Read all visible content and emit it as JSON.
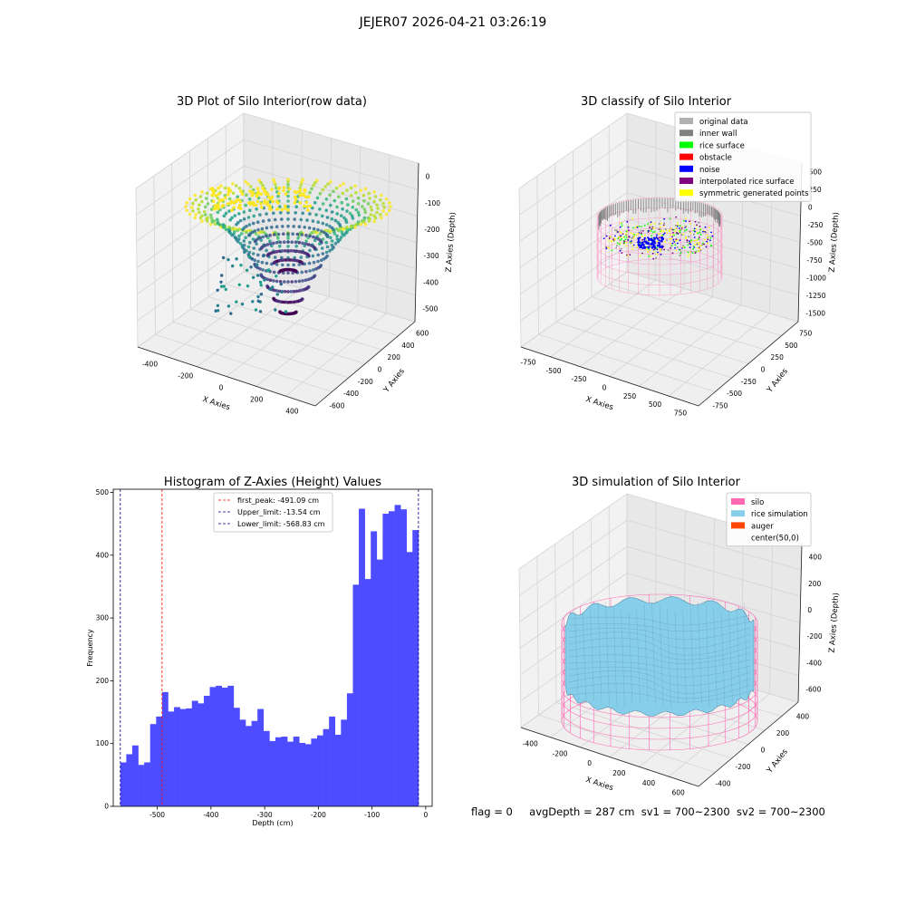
{
  "suptitle": "JEJER07 2026-04-21 03:26:19",
  "status_line": {
    "flag": "flag = 0",
    "avg_depth": "avgDepth = 287 cm",
    "sv1": "sv1 = 700~2300",
    "sv2": "sv2 = 700~2300"
  },
  "colors": {
    "histogram_bar": "#4d4dff",
    "first_peak_line": "#ff0000",
    "limit_line": "#00008b",
    "original_data": "#b0b0b0",
    "inner_wall": "#808080",
    "rice_surface": "#00ff00",
    "obstacle": "#ff0000",
    "noise": "#0000ff",
    "interpolated_rice_surface": "#800080",
    "symmetric_generated_points": "#ffff00",
    "silo": "#ff69b4",
    "rice_simulation": "#87ceeb",
    "auger": "#ff4500"
  },
  "chart_data": [
    {
      "type": "scatter",
      "projection": "3d",
      "title": "3D Plot of Silo Interior(row data)",
      "xlabel": "X Axies",
      "ylabel": "Y Axies",
      "zlabel": "Z Axies (Depth)",
      "x_ticks": [
        -400,
        -200,
        0,
        200,
        400
      ],
      "y_ticks": [
        -600,
        -400,
        -200,
        0,
        200,
        400,
        600
      ],
      "z_ticks": [
        -500,
        -400,
        -300,
        -200,
        -100,
        0
      ],
      "colormap": "viridis",
      "grid": true
    },
    {
      "type": "scatter",
      "projection": "3d",
      "title": "3D classify of Silo Interior",
      "xlabel": "X Axies",
      "ylabel": "Y Axies",
      "zlabel": "Z Axies (Depth)",
      "x_ticks": [
        -750,
        -500,
        -250,
        0,
        250,
        500,
        750
      ],
      "y_ticks": [
        -750,
        -500,
        -250,
        0,
        250,
        500,
        750
      ],
      "z_ticks": [
        -1500,
        -1250,
        -1000,
        -750,
        -500,
        -250,
        0,
        250,
        500
      ],
      "legend_position": "top-right",
      "legend": [
        "original data",
        "inner wall",
        "rice surface",
        "obstacle",
        "noise",
        "interpolated rice surface",
        "symmetric generated points"
      ],
      "grid": true
    },
    {
      "type": "bar",
      "title": "Histogram of Z-Axies (Height) Values",
      "xlabel": "Depth (cm)",
      "ylabel": "Frequency",
      "xlim": [
        -582,
        12
      ],
      "ylim": [
        0,
        505
      ],
      "x_ticks": [
        -500,
        -400,
        -300,
        -200,
        -100,
        0
      ],
      "y_ticks": [
        0,
        100,
        200,
        300,
        400,
        500
      ],
      "bin_start": -568.83,
      "bin_width": 11.106,
      "values": [
        70,
        83,
        97,
        66,
        70,
        131,
        143,
        182,
        151,
        158,
        155,
        156,
        168,
        164,
        176,
        190,
        192,
        189,
        192,
        157,
        138,
        128,
        136,
        155,
        120,
        104,
        110,
        111,
        103,
        111,
        101,
        99,
        108,
        113,
        123,
        143,
        114,
        138,
        180,
        353,
        474,
        362,
        438,
        393,
        466,
        470,
        480,
        473,
        405,
        440
      ],
      "vlines": [
        {
          "label": "first_peak: -491.09 cm",
          "x": -491.09,
          "color_key": "first_peak_line"
        },
        {
          "label": "Upper_limit: -13.54 cm",
          "x": -13.54,
          "color_key": "limit_line"
        },
        {
          "label": "Lower_limit: -568.83 cm",
          "x": -568.83,
          "color_key": "limit_line"
        }
      ],
      "legend_position": "top-center",
      "grid": false
    },
    {
      "type": "surface",
      "projection": "3d",
      "title": "3D simulation of Silo Interior",
      "xlabel": "X Axies",
      "ylabel": "Y Axies",
      "zlabel": "Z Axies (Depth)",
      "x_ticks": [
        -400,
        -200,
        0,
        200,
        400,
        600
      ],
      "y_ticks": [
        -400,
        -200,
        0,
        200,
        400
      ],
      "z_ticks": [
        -600,
        -400,
        -200,
        0,
        200,
        400
      ],
      "legend_position": "top-right",
      "legend": [
        "silo",
        "rice simulation",
        "auger",
        "center(50,0)"
      ],
      "grid": true
    }
  ]
}
